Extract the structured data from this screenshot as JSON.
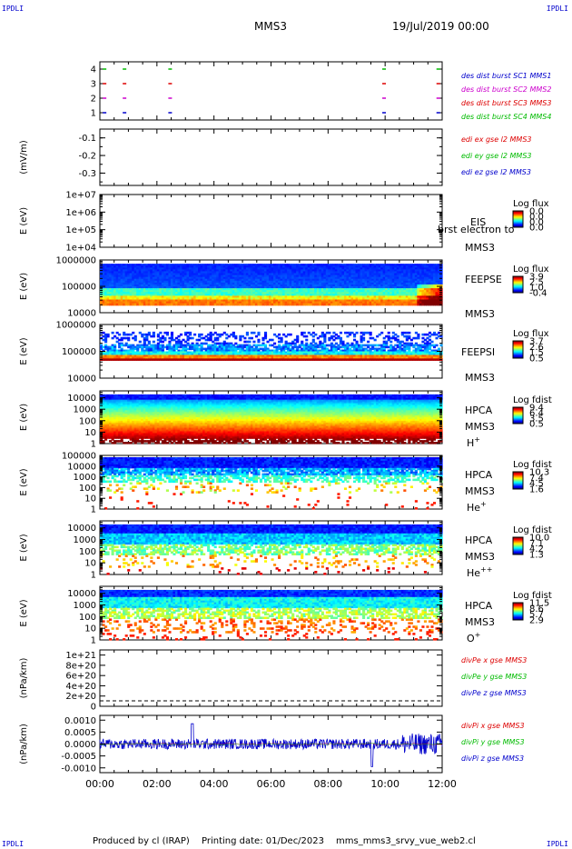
{
  "corner_label": "IPDLI",
  "header": {
    "spacecraft": "MMS3",
    "date": "19/Jul/2019 00:00"
  },
  "footer": {
    "produced_by": "Produced by cl (IRAP)",
    "printing_date": "Printing date: 01/Dec/2023",
    "filename": "mms_mms3_srvy_vue_web2.cl"
  },
  "x_axis": {
    "ticks": [
      "00:00",
      "02:00",
      "04:00",
      "06:00",
      "08:00",
      "10:00",
      "12:00"
    ],
    "range_hours": [
      0,
      12
    ]
  },
  "colors": {
    "blue": "#0000cc",
    "red": "#dd0000",
    "green": "#00bb00",
    "magenta": "#cc00cc"
  },
  "chart_data": [
    {
      "type": "scatter",
      "panel": "burst",
      "yticks": [
        "1",
        "2",
        "3",
        "4"
      ],
      "ylim": [
        0.5,
        4.5
      ],
      "series": [
        {
          "name": "des dist burst SC1 MMS1",
          "color": "#0000cc",
          "y": 1,
          "x": [
            0.1,
            0.8,
            2.4,
            9.9,
            11.8
          ]
        },
        {
          "name": "des dist burst SC2 MMS2",
          "color": "#cc00cc",
          "y": 2,
          "x": [
            0.1,
            0.8,
            2.4,
            9.9,
            11.8
          ]
        },
        {
          "name": "des dist burst SC3 MMS3",
          "color": "#dd0000",
          "y": 3,
          "x": [
            0.1,
            0.8,
            2.4,
            9.9,
            11.8
          ]
        },
        {
          "name": "des dist burst SC4 MMS4",
          "color": "#00bb00",
          "y": 4,
          "x": [
            0.1,
            0.8,
            2.4,
            9.9,
            11.8
          ]
        }
      ]
    },
    {
      "type": "line",
      "panel": "edi",
      "ylabel": "(mV/m)",
      "yticks": [
        "-0.1",
        "-0.2",
        "-0.3"
      ],
      "ylim": [
        -0.37,
        -0.05
      ],
      "series": [
        {
          "name": "edi ex gse l2 MMS3",
          "color": "#dd0000",
          "values": []
        },
        {
          "name": "edi ey gse l2 MMS3",
          "color": "#00bb00",
          "values": []
        },
        {
          "name": "edi ez gse l2 MMS3",
          "color": "#0000cc",
          "values": []
        }
      ]
    },
    {
      "type": "heatmap",
      "panel": "eis",
      "ylabel": "E (eV)",
      "yticks": [
        "1e+04",
        "1e+05",
        "1e+06",
        "1e+07"
      ],
      "ylim": [
        10000,
        10000000
      ],
      "labels": [
        "EIS",
        "MMS3"
      ],
      "overlay_text": "brst electron to",
      "colorbar_title": "Log flux",
      "colorbar_ticks": [
        "0.0",
        "0.0",
        "0.0",
        "0.0"
      ]
    },
    {
      "type": "heatmap",
      "panel": "feepse",
      "ylabel": "E (eV)",
      "yticks": [
        "10000",
        "100000",
        "1000000"
      ],
      "ylim": [
        10000,
        1000000
      ],
      "labels": [
        "FEEPSE",
        "MMS3"
      ],
      "colorbar_title": "Log flux",
      "colorbar_ticks": [
        "3.9",
        "2.5",
        "1.0",
        "-0.4"
      ]
    },
    {
      "type": "heatmap",
      "panel": "feepsi",
      "ylabel": "E (eV)",
      "yticks": [
        "10000",
        "100000",
        "1000000"
      ],
      "ylim": [
        10000,
        1000000
      ],
      "labels": [
        "FEEPSI",
        "MMS3"
      ],
      "colorbar_title": "Log flux",
      "colorbar_ticks": [
        "3.7",
        "2.6",
        "1.5",
        "0.5"
      ]
    },
    {
      "type": "heatmap",
      "panel": "hpca_h",
      "ylabel": "E (eV)",
      "yticks": [
        "1",
        "10",
        "100",
        "1000",
        "10000"
      ],
      "ylim": [
        1,
        40000
      ],
      "labels": [
        "HPCA",
        "MMS3"
      ],
      "species": "H",
      "species_charge": "+",
      "colorbar_title": "Log fdist",
      "colorbar_ticks": [
        "9.4",
        "6.4",
        "3.5",
        "0.5"
      ]
    },
    {
      "type": "heatmap",
      "panel": "hpca_he",
      "ylabel": "E (eV)",
      "yticks": [
        "1",
        "10",
        "100",
        "1000",
        "10000",
        "100000"
      ],
      "ylim": [
        1,
        100000
      ],
      "labels": [
        "HPCA",
        "MMS3"
      ],
      "species": "He",
      "species_charge": "+",
      "colorbar_title": "Log fdist",
      "colorbar_ticks": [
        "10.3",
        "7.4",
        "4.5",
        "1.6"
      ]
    },
    {
      "type": "heatmap",
      "panel": "hpca_hepp",
      "ylabel": "E (eV)",
      "yticks": [
        "1",
        "10",
        "100",
        "1000",
        "10000"
      ],
      "ylim": [
        1,
        40000
      ],
      "labels": [
        "HPCA",
        "MMS3"
      ],
      "species": "He",
      "species_charge": "++",
      "colorbar_title": "Log fdist",
      "colorbar_ticks": [
        "10.0",
        "7.1",
        "4.2",
        "1.3"
      ]
    },
    {
      "type": "heatmap",
      "panel": "hpca_o",
      "ylabel": "E (eV)",
      "yticks": [
        "1",
        "10",
        "100",
        "1000",
        "10000"
      ],
      "ylim": [
        1,
        40000
      ],
      "labels": [
        "HPCA",
        "MMS3"
      ],
      "species": "O",
      "species_charge": "+",
      "colorbar_title": "Log fdist",
      "colorbar_ticks": [
        "11.5",
        "8.6",
        "5.7",
        "2.9"
      ]
    },
    {
      "type": "line",
      "panel": "divpe",
      "ylabel": "(nPa/km)",
      "yticks": [
        "0",
        "2e+20",
        "4e+20",
        "6e+20",
        "8e+20",
        "1e+21"
      ],
      "ylim": [
        0,
        1.1e+21
      ],
      "series": [
        {
          "name": "divPe x gse MMS3",
          "color": "#dd0000",
          "values": []
        },
        {
          "name": "divPe y gse MMS3",
          "color": "#00bb00",
          "values": []
        },
        {
          "name": "divPe z gse MMS3",
          "color": "#0000cc",
          "values": []
        }
      ]
    },
    {
      "type": "line",
      "panel": "divpi",
      "ylabel": "(nPa/km)",
      "yticks": [
        "-0.0010",
        "-0.0005",
        "0.0000",
        "0.0005",
        "0.0010"
      ],
      "ylim": [
        -0.0012,
        0.0012
      ],
      "series": [
        {
          "name": "divPi x gse MMS3",
          "color": "#dd0000"
        },
        {
          "name": "divPi y gse MMS3",
          "color": "#00bb00"
        },
        {
          "name": "divPi z gse MMS3",
          "color": "#0000cc"
        }
      ]
    }
  ]
}
